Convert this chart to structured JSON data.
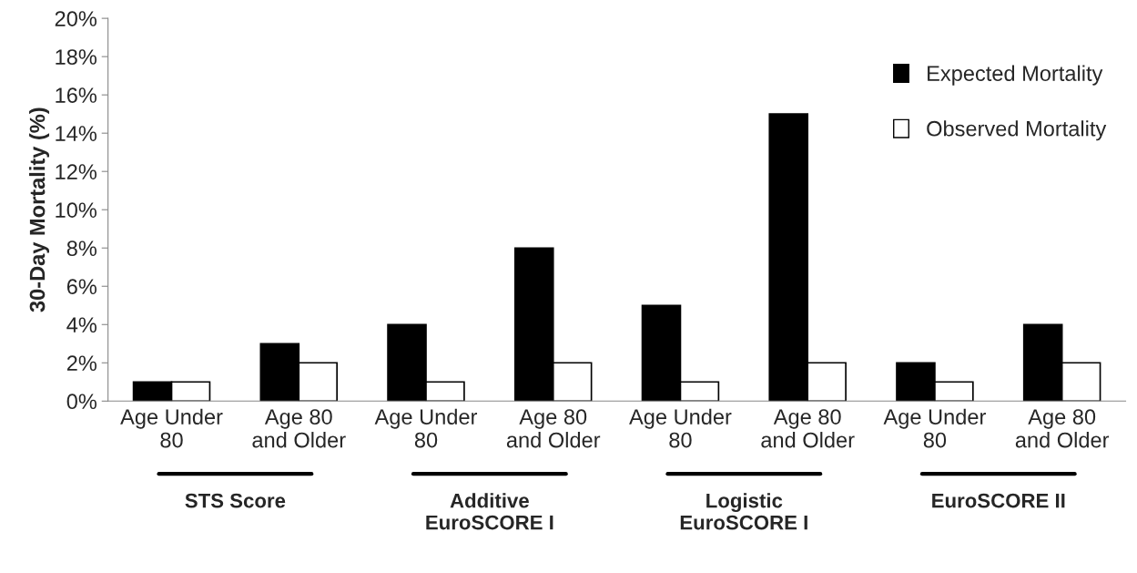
{
  "chart_data": {
    "type": "bar",
    "ylabel": "30-Day Mortality (%)",
    "categories": [
      "Age Under\n80",
      "Age 80\nand Older",
      "Age Under\n80",
      "Age 80\nand Older",
      "Age Under\n80",
      "Age 80\nand Older",
      "Age Under\n80",
      "Age 80\nand Older"
    ],
    "series": [
      {
        "name": "Expected Mortality",
        "color": "#000000",
        "values": [
          1,
          3,
          4,
          8,
          5,
          15,
          2,
          4
        ]
      },
      {
        "name": "Observed Mortality",
        "color": "#ffffff",
        "values": [
          1,
          2,
          1,
          2,
          1,
          2,
          1,
          2
        ]
      }
    ],
    "ylim": [
      0,
      20
    ],
    "yticks": [
      {
        "value": 0,
        "label": "0%"
      },
      {
        "value": 2,
        "label": "2%"
      },
      {
        "value": 4,
        "label": "4%"
      },
      {
        "value": 6,
        "label": "6%"
      },
      {
        "value": 8,
        "label": "8%"
      },
      {
        "value": 10,
        "label": "10%"
      },
      {
        "value": 12,
        "label": "12%"
      },
      {
        "value": 14,
        "label": "14%"
      },
      {
        "value": 16,
        "label": "16%"
      },
      {
        "value": 18,
        "label": "18%"
      },
      {
        "value": 20,
        "label": "20%"
      }
    ],
    "annotations": [
      "STS Score",
      "Additive\nEuroSCORE I",
      "Logistic\nEuroSCORE I",
      "EuroSCORE II"
    ],
    "grid": false,
    "legend": "top right"
  }
}
